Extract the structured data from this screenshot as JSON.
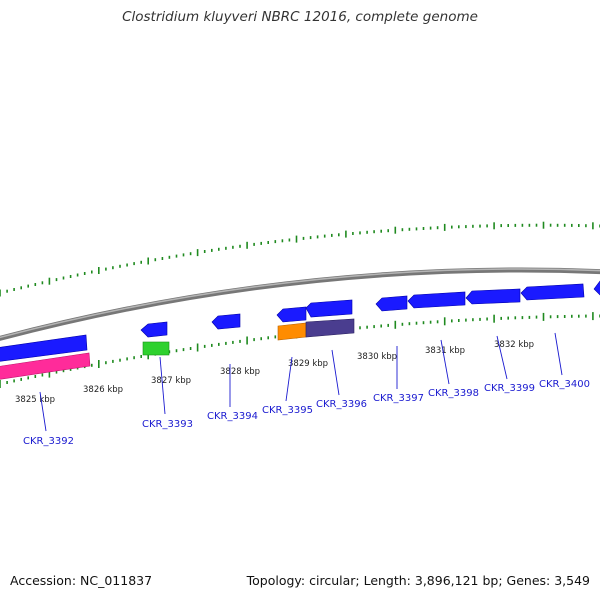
{
  "title": "Clostridium kluyveri NBRC 12016, complete genome",
  "footer": {
    "accession": "Accession: NC_011837",
    "summary": "Topology: circular; Length: 3,896,121 bp; Genes: 3,549"
  },
  "colors": {
    "forward": "#1a1aff",
    "reverse_highlight": "#ff2b9a",
    "green": "#2ed12e",
    "orange": "#ff8c00",
    "purple": "#4a3d8f",
    "backbone": "#8c8c8c",
    "tick": "#1f8a1f",
    "label": "#1a1ad0"
  },
  "ruler": {
    "unit": "kbp",
    "ticks": [
      {
        "kbp": 3825,
        "label": "3825 kbp"
      },
      {
        "kbp": 3826,
        "label": "3826 kbp"
      },
      {
        "kbp": 3827,
        "label": "3827 kbp"
      },
      {
        "kbp": 3828,
        "label": "3828 kbp"
      },
      {
        "kbp": 3829,
        "label": "3829 kbp"
      },
      {
        "kbp": 3830,
        "label": "3830 kbp"
      },
      {
        "kbp": 3831,
        "label": "3831 kbp"
      },
      {
        "kbp": 3832,
        "label": "3832 kbp"
      }
    ]
  },
  "genes": [
    {
      "id": "CKR_3392",
      "label": "CKR_3392"
    },
    {
      "id": "CKR_3393",
      "label": "CKR_3393"
    },
    {
      "id": "CKR_3394",
      "label": "CKR_3394"
    },
    {
      "id": "CKR_3395",
      "label": "CKR_3395"
    },
    {
      "id": "CKR_3396",
      "label": "CKR_3396"
    },
    {
      "id": "CKR_3397",
      "label": "CKR_3397"
    },
    {
      "id": "CKR_3398",
      "label": "CKR_3398"
    },
    {
      "id": "CKR_3399",
      "label": "CKR_3399"
    },
    {
      "id": "CKR_3400",
      "label": "CKR_3400"
    }
  ]
}
